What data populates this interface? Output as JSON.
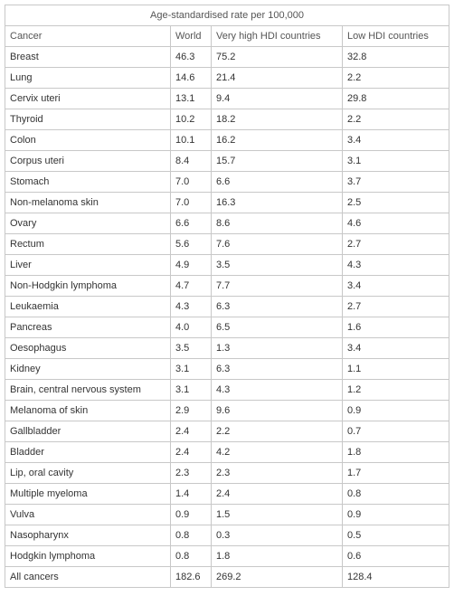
{
  "table": {
    "caption": "Age-standardised rate per 100,000",
    "columns": [
      "Cancer",
      "World",
      "Very high HDI countries",
      "Low HDI countries"
    ],
    "rows": [
      [
        "Breast",
        "46.3",
        "75.2",
        "32.8"
      ],
      [
        "Lung",
        "14.6",
        "21.4",
        "2.2"
      ],
      [
        "Cervix uteri",
        "13.1",
        "9.4",
        "29.8"
      ],
      [
        "Thyroid",
        "10.2",
        "18.2",
        "2.2"
      ],
      [
        "Colon",
        "10.1",
        "16.2",
        "3.4"
      ],
      [
        "Corpus uteri",
        "8.4",
        "15.7",
        "3.1"
      ],
      [
        "Stomach",
        "7.0",
        "6.6",
        "3.7"
      ],
      [
        "Non-melanoma skin",
        "7.0",
        "16.3",
        "2.5"
      ],
      [
        "Ovary",
        "6.6",
        "8.6",
        "4.6"
      ],
      [
        "Rectum",
        "5.6",
        "7.6",
        "2.7"
      ],
      [
        "Liver",
        "4.9",
        "3.5",
        "4.3"
      ],
      [
        "Non-Hodgkin lymphoma",
        "4.7",
        "7.7",
        "3.4"
      ],
      [
        "Leukaemia",
        "4.3",
        "6.3",
        "2.7"
      ],
      [
        "Pancreas",
        "4.0",
        "6.5",
        "1.6"
      ],
      [
        "Oesophagus",
        "3.5",
        "1.3",
        "3.4"
      ],
      [
        "Kidney",
        "3.1",
        "6.3",
        "1.1"
      ],
      [
        "Brain, central nervous system",
        "3.1",
        "4.3",
        "1.2"
      ],
      [
        "Melanoma of skin",
        "2.9",
        "9.6",
        "0.9"
      ],
      [
        "Gallbladder",
        "2.4",
        "2.2",
        "0.7"
      ],
      [
        "Bladder",
        "2.4",
        "4.2",
        "1.8"
      ],
      [
        "Lip, oral cavity",
        "2.3",
        "2.3",
        "1.7"
      ],
      [
        "Multiple myeloma",
        "1.4",
        "2.4",
        "0.8"
      ],
      [
        "Vulva",
        "0.9",
        "1.5",
        "0.9"
      ],
      [
        "Nasopharynx",
        "0.8",
        "0.3",
        "0.5"
      ],
      [
        "Hodgkin lymphoma",
        "0.8",
        "1.8",
        "0.6"
      ]
    ],
    "total": [
      "All cancers",
      "182.6",
      "269.2",
      "128.4"
    ]
  }
}
